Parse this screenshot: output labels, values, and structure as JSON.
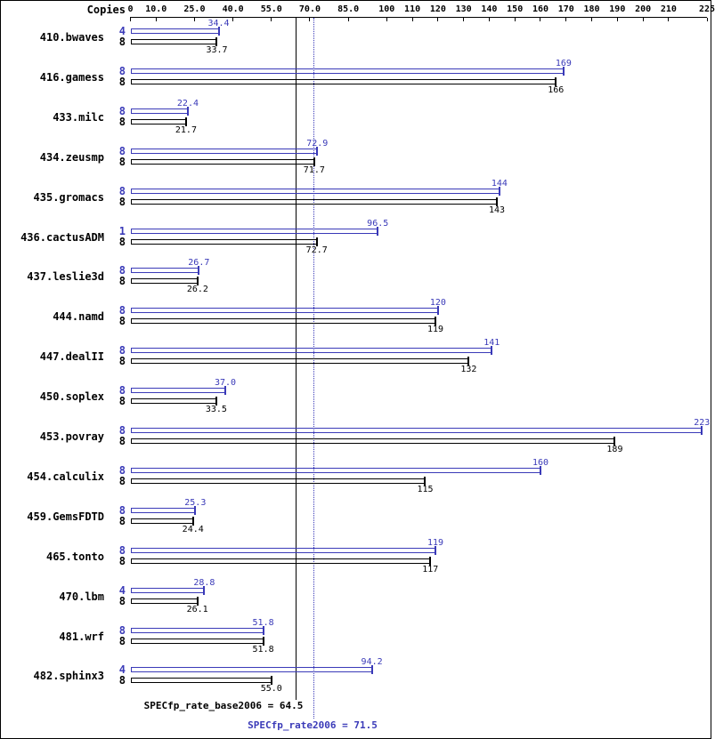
{
  "header": {
    "copies_label": "Copies"
  },
  "chart_data": {
    "type": "bar",
    "orientation": "horizontal",
    "axis": {
      "min": 0,
      "max": 225,
      "ticks": [
        0,
        10,
        25,
        40,
        55,
        70,
        85,
        100,
        110,
        120,
        130,
        140,
        150,
        160,
        170,
        180,
        190,
        200,
        210,
        225
      ],
      "tick_labels": [
        "0",
        "10.0",
        "25.0",
        "40.0",
        "55.0",
        "70.0",
        "85.0",
        "100",
        "110",
        "120",
        "130",
        "140",
        "150",
        "160",
        "170",
        "180",
        "190",
        "200",
        "210",
        "225"
      ]
    },
    "colors": {
      "peak": "#3a3ab8",
      "base": "#000000"
    },
    "series": [
      "peak",
      "base"
    ],
    "benchmarks": [
      {
        "name": "410.bwaves",
        "peak_copies": "4",
        "base_copies": "8",
        "peak_label": "34.4",
        "base_label": "33.7",
        "peak": 34.4,
        "base": 33.7
      },
      {
        "name": "416.gamess",
        "peak_copies": "8",
        "base_copies": "8",
        "peak_label": "169",
        "base_label": "166",
        "peak": 169,
        "base": 166
      },
      {
        "name": "433.milc",
        "peak_copies": "8",
        "base_copies": "8",
        "peak_label": "22.4",
        "base_label": "21.7",
        "peak": 22.4,
        "base": 21.7
      },
      {
        "name": "434.zeusmp",
        "peak_copies": "8",
        "base_copies": "8",
        "peak_label": "72.9",
        "base_label": "71.7",
        "peak": 72.9,
        "base": 71.7
      },
      {
        "name": "435.gromacs",
        "peak_copies": "8",
        "base_copies": "8",
        "peak_label": "144",
        "base_label": "143",
        "peak": 144,
        "base": 143
      },
      {
        "name": "436.cactusADM",
        "peak_copies": "1",
        "base_copies": "8",
        "peak_label": "96.5",
        "base_label": "72.7",
        "peak": 96.5,
        "base": 72.7
      },
      {
        "name": "437.leslie3d",
        "peak_copies": "8",
        "base_copies": "8",
        "peak_label": "26.7",
        "base_label": "26.2",
        "peak": 26.7,
        "base": 26.2
      },
      {
        "name": "444.namd",
        "peak_copies": "8",
        "base_copies": "8",
        "peak_label": "120",
        "base_label": "119",
        "peak": 120,
        "base": 119
      },
      {
        "name": "447.dealII",
        "peak_copies": "8",
        "base_copies": "8",
        "peak_label": "141",
        "base_label": "132",
        "peak": 141,
        "base": 132
      },
      {
        "name": "450.soplex",
        "peak_copies": "8",
        "base_copies": "8",
        "peak_label": "37.0",
        "base_label": "33.5",
        "peak": 37.0,
        "base": 33.5
      },
      {
        "name": "453.povray",
        "peak_copies": "8",
        "base_copies": "8",
        "peak_label": "223",
        "base_label": "189",
        "peak": 223,
        "base": 189
      },
      {
        "name": "454.calculix",
        "peak_copies": "8",
        "base_copies": "8",
        "peak_label": "160",
        "base_label": "115",
        "peak": 160,
        "base": 115
      },
      {
        "name": "459.GemsFDTD",
        "peak_copies": "8",
        "base_copies": "8",
        "peak_label": "25.3",
        "base_label": "24.4",
        "peak": 25.3,
        "base": 24.4
      },
      {
        "name": "465.tonto",
        "peak_copies": "8",
        "base_copies": "8",
        "peak_label": "119",
        "base_label": "117",
        "peak": 119,
        "base": 117
      },
      {
        "name": "470.lbm",
        "peak_copies": "4",
        "base_copies": "8",
        "peak_label": "28.8",
        "base_label": "26.1",
        "peak": 28.8,
        "base": 26.1
      },
      {
        "name": "481.wrf",
        "peak_copies": "8",
        "base_copies": "8",
        "peak_label": "51.8",
        "base_label": "51.8",
        "peak": 51.8,
        "base": 51.8
      },
      {
        "name": "482.sphinx3",
        "peak_copies": "4",
        "base_copies": "8",
        "peak_label": "94.2",
        "base_label": "55.0",
        "peak": 94.2,
        "base": 55.0
      }
    ],
    "means": {
      "base": {
        "label": "SPECfp_rate_base2006 = 64.5",
        "value": 64.5
      },
      "peak": {
        "label": "SPECfp_rate2006 = 71.5",
        "value": 71.5
      }
    }
  }
}
